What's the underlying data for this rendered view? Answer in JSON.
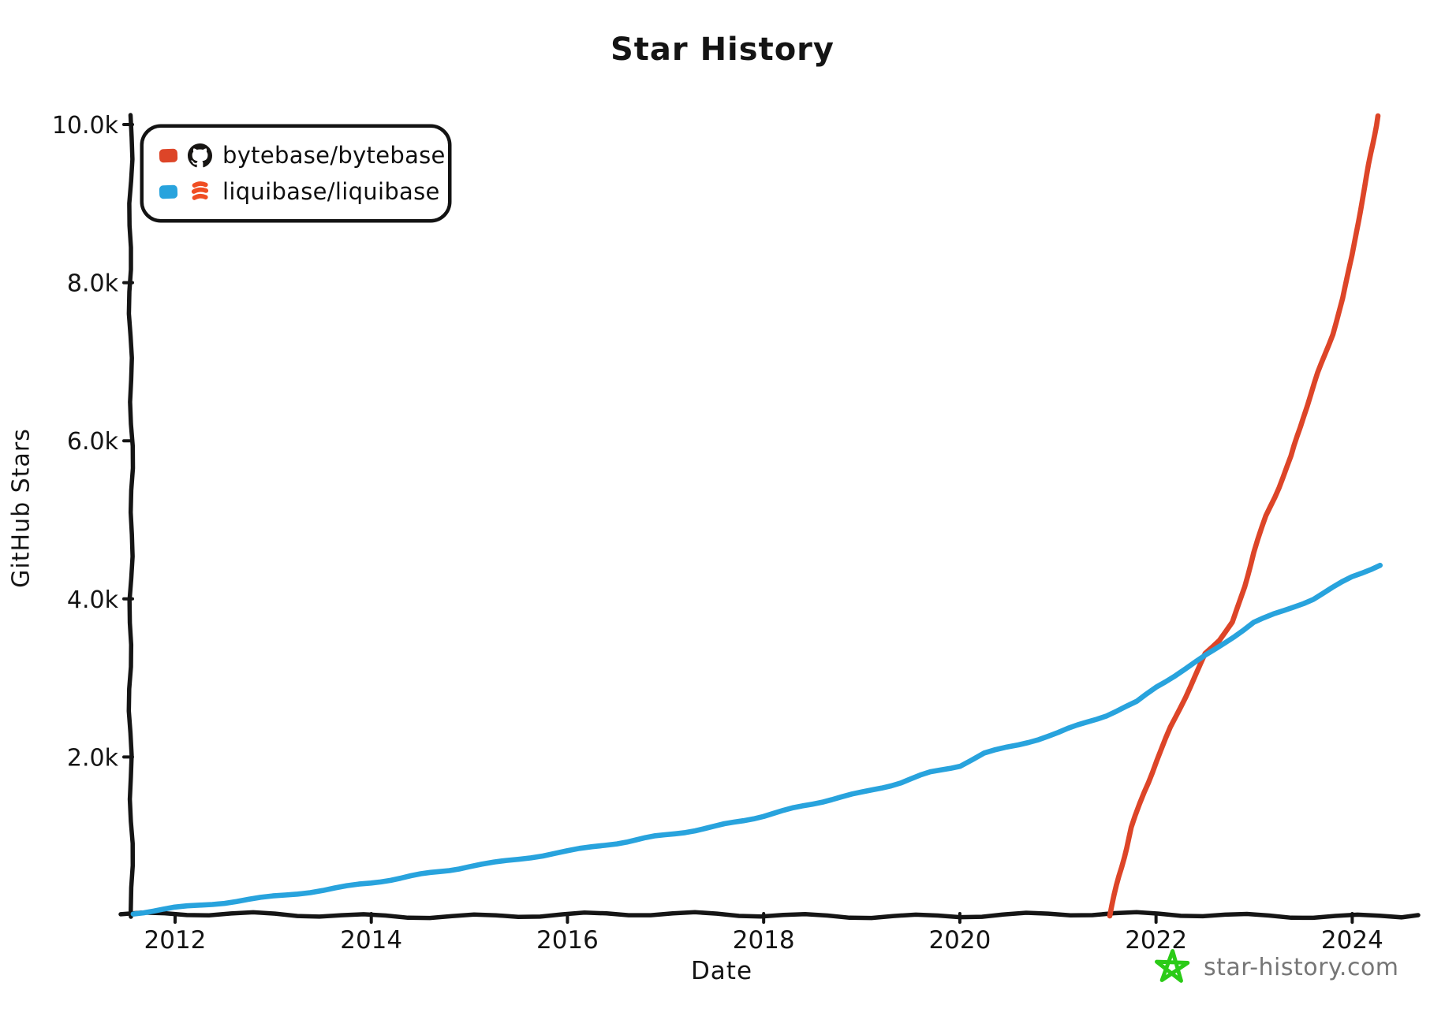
{
  "title": "Star History",
  "chart_data": {
    "type": "line",
    "title": "Star History",
    "xlabel": "Date",
    "ylabel": "GitHub Stars",
    "xlim": [
      2011.55,
      2024.6
    ],
    "ylim": [
      0,
      10000
    ],
    "grid": false,
    "legend_position": "top-left",
    "x_ticks": [
      {
        "label": "2012",
        "value": 2012
      },
      {
        "label": "2014",
        "value": 2014
      },
      {
        "label": "2016",
        "value": 2016
      },
      {
        "label": "2018",
        "value": 2018
      },
      {
        "label": "2020",
        "value": 2020
      },
      {
        "label": "2022",
        "value": 2022
      },
      {
        "label": "2024",
        "value": 2024
      }
    ],
    "y_ticks": [
      {
        "label": "2.0k",
        "value": 2000
      },
      {
        "label": "4.0k",
        "value": 4000
      },
      {
        "label": "6.0k",
        "value": 6000
      },
      {
        "label": "8.0k",
        "value": 8000
      },
      {
        "label": "10.0k",
        "value": 10000
      }
    ],
    "series": [
      {
        "name": "bytebase/bytebase",
        "color": "#dd4528",
        "icon": "github-icon",
        "points": [
          [
            2021.53,
            0
          ],
          [
            2021.62,
            480
          ],
          [
            2021.75,
            1100
          ],
          [
            2021.88,
            1560
          ],
          [
            2022.0,
            1950
          ],
          [
            2022.15,
            2380
          ],
          [
            2022.3,
            2760
          ],
          [
            2022.5,
            3300
          ],
          [
            2022.65,
            3480
          ],
          [
            2022.78,
            3700
          ],
          [
            2022.9,
            4150
          ],
          [
            2023.0,
            4600
          ],
          [
            2023.12,
            5050
          ],
          [
            2023.25,
            5420
          ],
          [
            2023.38,
            5800
          ],
          [
            2023.5,
            6300
          ],
          [
            2023.65,
            6850
          ],
          [
            2023.8,
            7350
          ],
          [
            2023.9,
            7800
          ],
          [
            2024.0,
            8350
          ],
          [
            2024.08,
            8900
          ],
          [
            2024.15,
            9350
          ],
          [
            2024.21,
            9750
          ],
          [
            2024.26,
            10120
          ]
        ]
      },
      {
        "name": "liquibase/liquibase",
        "color": "#28a3dd",
        "icon": "liquibase-icon",
        "points": [
          [
            2011.57,
            15
          ],
          [
            2012.0,
            90
          ],
          [
            2012.5,
            165
          ],
          [
            2013.0,
            240
          ],
          [
            2013.5,
            315
          ],
          [
            2014.0,
            400
          ],
          [
            2014.5,
            510
          ],
          [
            2015.0,
            620
          ],
          [
            2015.5,
            715
          ],
          [
            2016.0,
            805
          ],
          [
            2016.5,
            905
          ],
          [
            2017.0,
            1010
          ],
          [
            2017.5,
            1125
          ],
          [
            2018.0,
            1260
          ],
          [
            2018.5,
            1405
          ],
          [
            2019.0,
            1545
          ],
          [
            2019.4,
            1680
          ],
          [
            2019.7,
            1810
          ],
          [
            2020.0,
            1900
          ],
          [
            2020.25,
            2050
          ],
          [
            2020.6,
            2150
          ],
          [
            2021.0,
            2300
          ],
          [
            2021.5,
            2530
          ],
          [
            2021.8,
            2700
          ],
          [
            2022.0,
            2890
          ],
          [
            2022.3,
            3120
          ],
          [
            2022.6,
            3360
          ],
          [
            2023.0,
            3700
          ],
          [
            2023.3,
            3840
          ],
          [
            2023.6,
            4000
          ],
          [
            2024.0,
            4280
          ],
          [
            2024.28,
            4440
          ]
        ]
      }
    ]
  },
  "watermark": {
    "text": "star-history.com",
    "icon": "star-icon",
    "icon_color": "#2bcb17",
    "text_color": "#767676"
  }
}
